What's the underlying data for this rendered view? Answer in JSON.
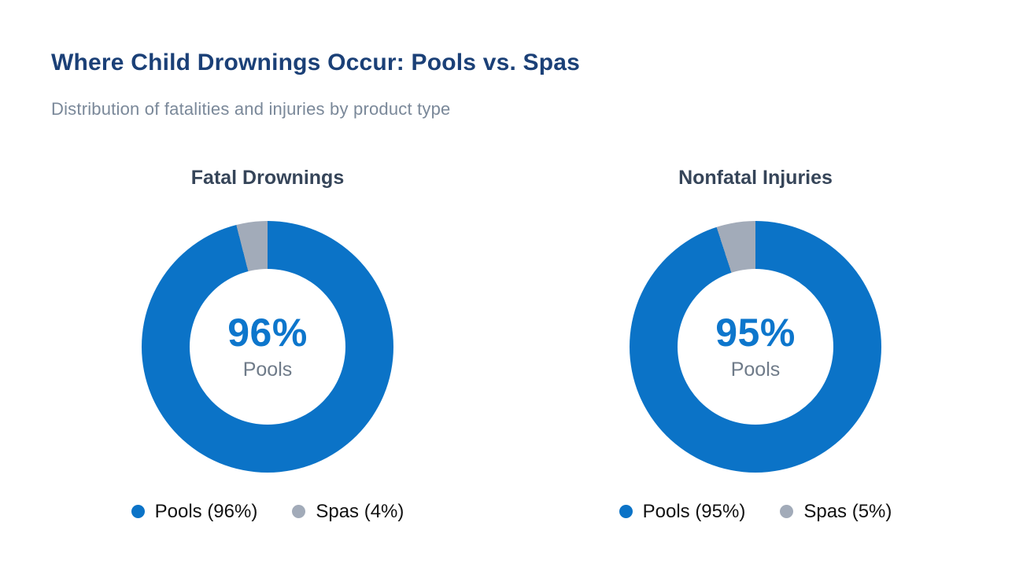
{
  "page": {
    "title": "Where Child Drownings Occur: Pools vs. Spas",
    "subtitle": "Distribution of fatalities and injuries by product type"
  },
  "colors": {
    "title_navy": "#1b4077",
    "subtitle_gray": "#7a8899",
    "chart_title_slate": "#364559",
    "pools_blue": "#0b73c7",
    "spas_gray": "#a2abb9",
    "center_value_blue": "#0d76cc",
    "center_label_gray": "#6f7b89",
    "legend_text": "#111111",
    "background": "#ffffff"
  },
  "chart_data": [
    {
      "type": "pie",
      "variant": "donut",
      "title": "Fatal Drownings",
      "categories": [
        "Pools",
        "Spas"
      ],
      "values": [
        96,
        4
      ],
      "unit": "%",
      "colors": [
        "#0b73c7",
        "#a2abb9"
      ],
      "start_angle_deg": 0,
      "direction": "clockwise",
      "center": {
        "value": "96%",
        "label": "Pools"
      },
      "legend_position": "bottom",
      "legend": [
        {
          "label": "Pools (96%)",
          "color": "#0b73c7"
        },
        {
          "label": "Spas (4%)",
          "color": "#a2abb9"
        }
      ]
    },
    {
      "type": "pie",
      "variant": "donut",
      "title": "Nonfatal Injuries",
      "categories": [
        "Pools",
        "Spas"
      ],
      "values": [
        95,
        5
      ],
      "unit": "%",
      "colors": [
        "#0b73c7",
        "#a2abb9"
      ],
      "start_angle_deg": 0,
      "direction": "clockwise",
      "center": {
        "value": "95%",
        "label": "Pools"
      },
      "legend_position": "bottom",
      "legend": [
        {
          "label": "Pools (95%)",
          "color": "#0b73c7"
        },
        {
          "label": "Spas (5%)",
          "color": "#a2abb9"
        }
      ]
    }
  ]
}
